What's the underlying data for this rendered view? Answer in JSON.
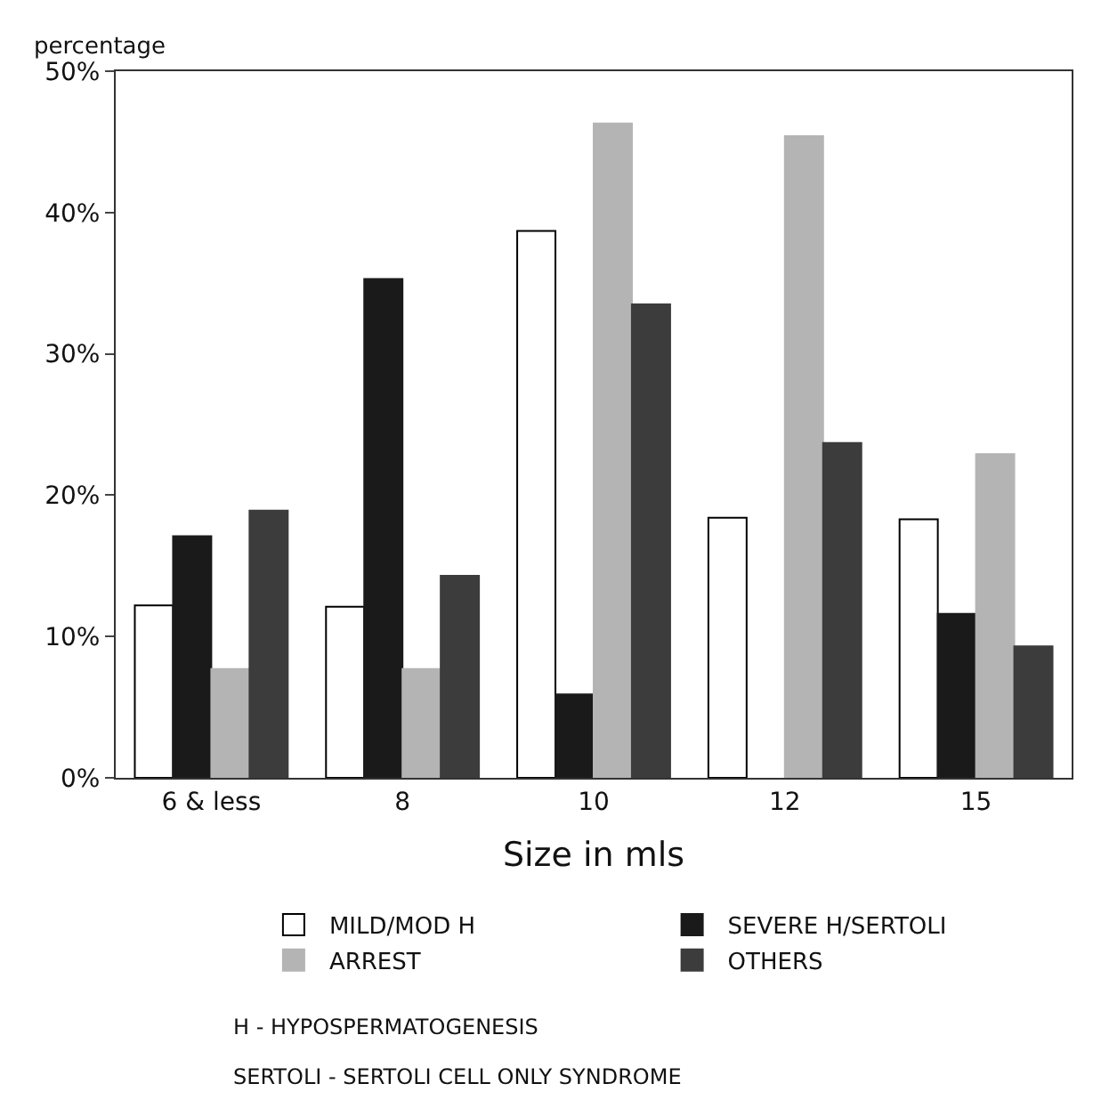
{
  "chart_data": {
    "type": "bar",
    "xlabel": "Size in mls",
    "ylabel": "percentage",
    "categories": [
      "6 & less",
      "8",
      "10",
      "12",
      "15"
    ],
    "series": [
      {
        "name": "MILD/MOD H",
        "color": "#ffffff",
        "values": [
          12.2,
          12.1,
          38.7,
          18.4,
          18.3
        ]
      },
      {
        "name": "SEVERE H/SERTOLI",
        "color": "#1a1a1a",
        "values": [
          17.1,
          35.3,
          5.9,
          null,
          11.6
        ]
      },
      {
        "name": "ARREST",
        "color": "#b4b4b4",
        "values": [
          7.7,
          7.7,
          46.3,
          45.4,
          22.9
        ]
      },
      {
        "name": "OTHERS",
        "color": "#3c3c3c",
        "values": [
          18.9,
          14.3,
          33.5,
          23.7,
          9.3
        ]
      }
    ],
    "ylim": [
      0,
      50
    ],
    "yticks": [
      {
        "value": 0,
        "label": "0%"
      },
      {
        "value": 10,
        "label": "10%"
      },
      {
        "value": 20,
        "label": "20%"
      },
      {
        "value": 30,
        "label": "30%"
      },
      {
        "value": 40,
        "label": "40%"
      },
      {
        "value": 50,
        "label": "50%"
      }
    ],
    "legend": "bottom",
    "annotations": [
      "H - HYPOSPERMATOGENESIS",
      "SERTOLI - SERTOLI CELL ONLY SYNDROME"
    ]
  }
}
